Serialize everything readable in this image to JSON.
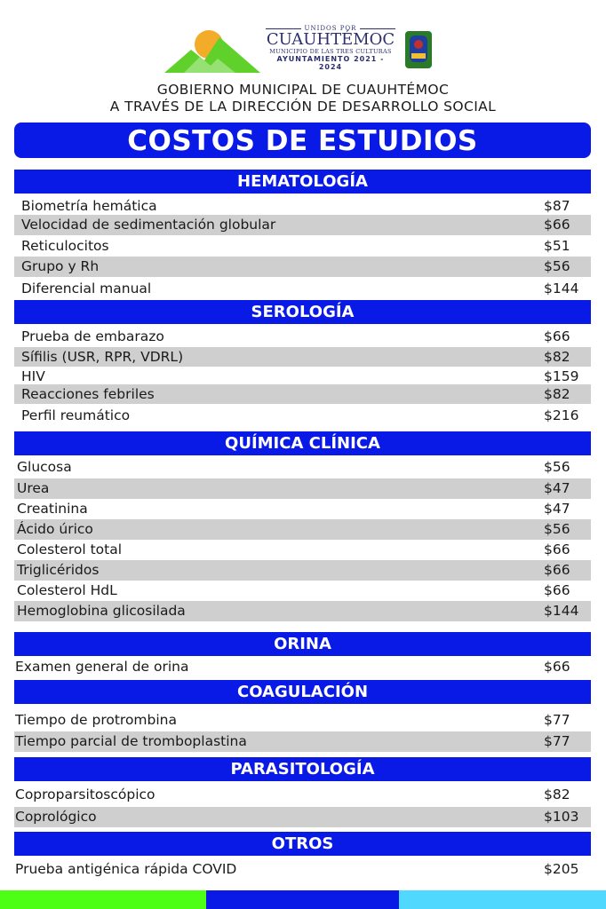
{
  "header": {
    "logo": {
      "unidos": "UNIDOS POR",
      "city": "CUAUHTÉMOC",
      "subtitle": "MUNICIPIO DE LAS TRES CULTURAS",
      "ayuntamiento": "AYUNTAMIENTO 2021 - 2024"
    },
    "gov_line1": "GOBIERNO MUNICIPAL DE CUAUHTÉMOC",
    "gov_line2": "A TRAVÉS DE LA DIRECCIÓN DE DESARROLLO SOCIAL",
    "title": "COSTOS DE ESTUDIOS"
  },
  "colors": {
    "blue": "#0a1ae6",
    "gray_row": "#cfcfcf",
    "green": "#4cff14",
    "cyan": "#50d8ff"
  },
  "sections": [
    {
      "title": "HEMATOLOGÍA",
      "items": [
        {
          "name": "Biometría hemática",
          "price": "$87"
        },
        {
          "name": "Velocidad de sedimentación globular",
          "price": "$66"
        },
        {
          "name": "Reticulocitos",
          "price": "$51"
        },
        {
          "name": "Grupo y Rh",
          "price": "$56"
        },
        {
          "name": "Diferencial manual",
          "price": "$144"
        }
      ]
    },
    {
      "title": "SEROLOGÍA",
      "items": [
        {
          "name": "Prueba de embarazo",
          "price": "$66"
        },
        {
          "name": "Sífilis (USR, RPR, VDRL)",
          "price": "$82"
        },
        {
          "name": "HIV",
          "price": "$159"
        },
        {
          "name": "Reacciones febriles",
          "price": "$82"
        },
        {
          "name": "Perfil reumático",
          "price": "$216"
        }
      ]
    },
    {
      "title": "QUÍMICA CLÍNICA",
      "items": [
        {
          "name": "Glucosa",
          "price": "$56"
        },
        {
          "name": "Urea",
          "price": "$47"
        },
        {
          "name": "Creatinina",
          "price": "$47"
        },
        {
          "name": "Ácido úrico",
          "price": "$56"
        },
        {
          "name": "Colesterol total",
          "price": "$66"
        },
        {
          "name": "Triglicéridos",
          "price": "$66"
        },
        {
          "name": "Colesterol HdL",
          "price": "$66"
        },
        {
          "name": "Hemoglobina glicosilada",
          "price": "$144"
        }
      ]
    },
    {
      "title": "ORINA",
      "items": [
        {
          "name": "Examen general de orina",
          "price": "$66"
        }
      ]
    },
    {
      "title": "COAGULACIÓN",
      "items": [
        {
          "name": "Tiempo de protrombina",
          "price": "$77"
        },
        {
          "name": "Tiempo parcial de tromboplastina",
          "price": "$77"
        }
      ]
    },
    {
      "title": "PARASITOLOGÍA",
      "items": [
        {
          "name": "Coproparsitoscópico",
          "price": "$82"
        },
        {
          "name": "Coprológico",
          "price": "$103"
        }
      ]
    },
    {
      "title": "OTROS",
      "items": [
        {
          "name": "Prueba antigénica rápida COVID",
          "price": "$205"
        }
      ]
    }
  ]
}
